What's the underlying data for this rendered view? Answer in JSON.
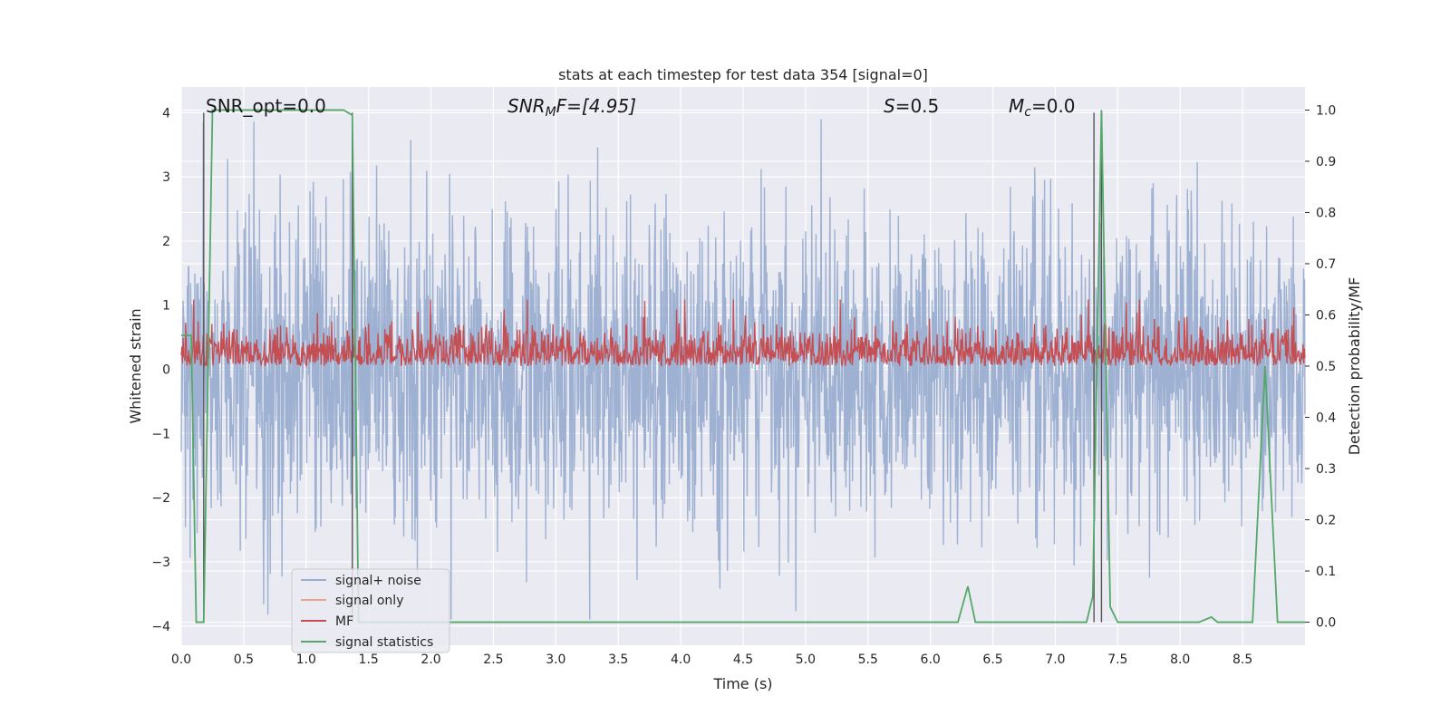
{
  "chart_data": {
    "type": "line",
    "title": "stats at each timestep for test data 354 [signal=0]",
    "xlabel": "Time (s)",
    "ylabel_left": "Whitened strain",
    "ylabel_right": "Detection probability/MF",
    "xlim": [
      0,
      9.0
    ],
    "ylim_left": [
      -4.3,
      4.4
    ],
    "ylim_right": [
      -0.045,
      1.045
    ],
    "x_ticks": [
      "0.0",
      "0.5",
      "1.0",
      "1.5",
      "2.0",
      "2.5",
      "3.0",
      "3.5",
      "4.0",
      "4.5",
      "5.0",
      "5.5",
      "6.0",
      "6.5",
      "7.0",
      "7.5",
      "8.0",
      "8.5"
    ],
    "y_left_ticks": [
      "4",
      "3",
      "2",
      "1",
      "0",
      "−1",
      "−2",
      "−3",
      "−4"
    ],
    "y_right_ticks": [
      "1.0",
      "0.9",
      "0.8",
      "0.7",
      "0.6",
      "0.5",
      "0.4",
      "0.3",
      "0.2",
      "0.1",
      "0.0"
    ],
    "grid": true,
    "legend_placement": "lower-left",
    "annotations": {
      "snr_opt": "SNR_opt=0.0",
      "snr_mf_sym": "SNR",
      "snr_mf_sub": "M",
      "snr_mf_rest": "F=[4.95]",
      "s_sym": "S",
      "s_rest": "=0.5",
      "mc_sym": "M",
      "mc_sub": "c",
      "mc_rest": "=0.0"
    },
    "vertical_lines_x": [
      0.18,
      1.37,
      7.31,
      7.37
    ],
    "series": [
      {
        "name": "signal+ noise",
        "color": "#9aaed0",
        "axis": "left",
        "description_sampling": "noise",
        "amplitude_typical": 1.2,
        "amplitude_peak": 3.9,
        "x_start": 0.0,
        "x_end": 9.0
      },
      {
        "name": "signal only",
        "color": "#e8a58a",
        "axis": "left",
        "values": []
      },
      {
        "name": "MF",
        "color": "#c44e52",
        "axis": "right",
        "baseline": 0.5,
        "typical_max": 0.58,
        "peak": 0.63,
        "x_start": 0.0,
        "x_end": 9.0
      },
      {
        "name": "signal statistics",
        "color": "#55a868",
        "axis": "right",
        "x": [
          0.0,
          0.08,
          0.12,
          0.18,
          0.25,
          0.5,
          1.0,
          1.3,
          1.37,
          1.42,
          1.48,
          1.6,
          2.0,
          3.0,
          4.0,
          5.0,
          6.0,
          6.22,
          6.3,
          6.36,
          6.5,
          7.0,
          7.25,
          7.3,
          7.37,
          7.44,
          7.5,
          8.0,
          8.15,
          8.25,
          8.3,
          8.5,
          8.58,
          8.68,
          8.78,
          8.82,
          9.0
        ],
        "values": [
          0.56,
          0.56,
          0.0,
          0.0,
          1.0,
          1.0,
          1.0,
          1.0,
          0.99,
          0.0,
          0.0,
          0.0,
          0.0,
          0.0,
          0.0,
          0.0,
          0.0,
          0.0,
          0.07,
          0.0,
          0.0,
          0.0,
          0.0,
          0.05,
          1.0,
          0.03,
          0.0,
          0.0,
          0.0,
          0.01,
          0.0,
          0.0,
          0.0,
          0.5,
          0.0,
          0.0,
          0.0
        ]
      }
    ]
  }
}
